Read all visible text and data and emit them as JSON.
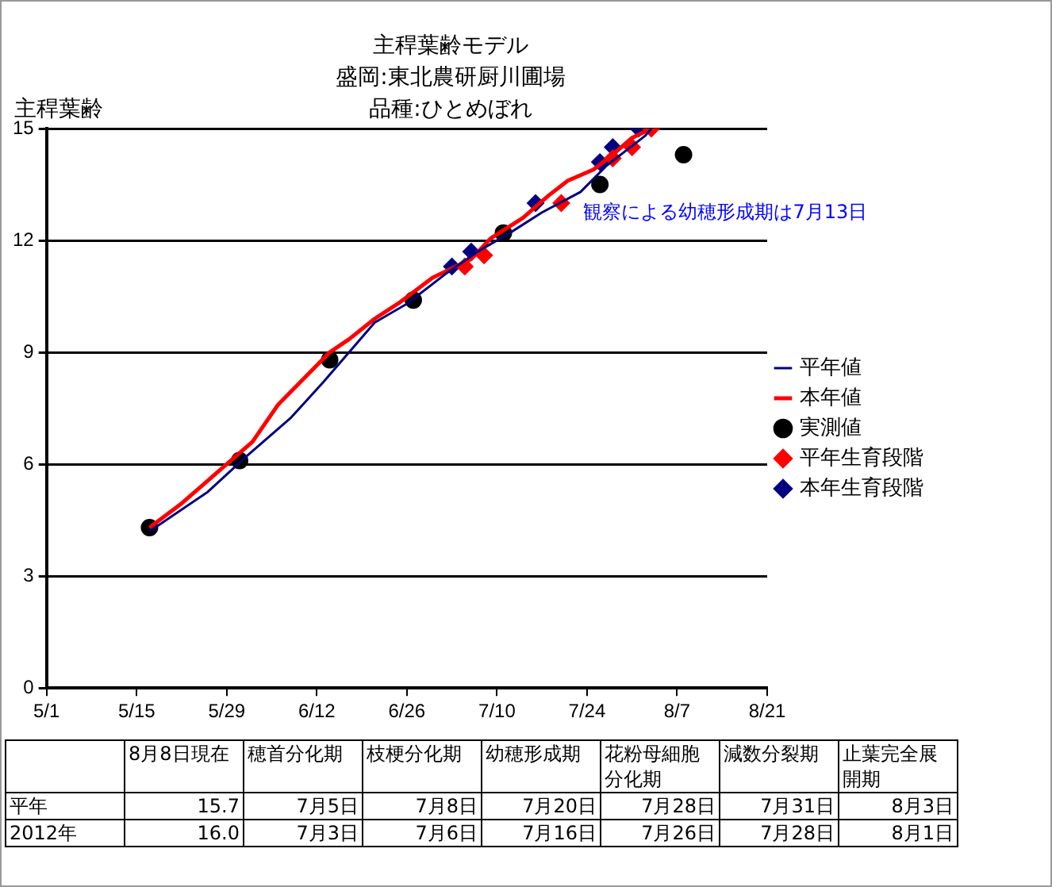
{
  "chart_data": {
    "type": "line",
    "title": "主稈葉齢モデル",
    "subtitle": "盛岡:東北農研厨川圃場",
    "ylabel": "主稈葉齢",
    "xlim": [
      "2012-05-01",
      "2012-08-21"
    ],
    "xticks": [
      {
        "value": "2012-05-01",
        "label": "5/1"
      },
      {
        "value": "2012-05-15",
        "label": "5/15"
      },
      {
        "value": "2012-05-29",
        "label": "5/29"
      },
      {
        "value": "2012-06-12",
        "label": "6/12"
      },
      {
        "value": "2012-06-26",
        "label": "6/26"
      },
      {
        "value": "2012-07-10",
        "label": "7/10"
      },
      {
        "value": "2012-07-24",
        "label": "7/24"
      },
      {
        "value": "2012-08-07",
        "label": "8/7"
      },
      {
        "value": "2012-08-21",
        "label": "8/21"
      }
    ],
    "ylim": [
      0,
      15
    ],
    "yticks": [
      0,
      3,
      6,
      9,
      12,
      15
    ],
    "grid": "y",
    "legend": "right",
    "series": [
      {
        "name": "平年値",
        "marker": "none",
        "color": "#000080",
        "x": [
          "2012-05-17",
          "2012-05-26",
          "2012-06-01",
          "2012-06-08",
          "2012-06-13",
          "2012-06-18",
          "2012-06-21",
          "2012-06-26",
          "2012-07-02",
          "2012-07-07",
          "2012-07-12",
          "2012-07-17",
          "2012-07-23",
          "2012-07-27",
          "2012-08-02",
          "2012-08-03"
        ],
        "values": [
          4.2,
          5.25,
          6.2,
          7.25,
          8.2,
          9.2,
          9.8,
          10.3,
          11.1,
          11.7,
          12.2,
          12.75,
          13.3,
          14.0,
          14.8,
          15.0
        ]
      },
      {
        "name": "本年値",
        "marker": "none",
        "color": "#ff0000",
        "x": [
          "2012-05-17",
          "2012-05-22",
          "2012-05-27",
          "2012-06-02",
          "2012-06-06",
          "2012-06-10",
          "2012-06-14",
          "2012-06-17",
          "2012-06-21",
          "2012-06-25",
          "2012-06-30",
          "2012-07-06",
          "2012-07-09",
          "2012-07-14",
          "2012-07-18",
          "2012-07-21",
          "2012-07-25",
          "2012-07-28",
          "2012-07-31",
          "2012-08-03"
        ],
        "values": [
          4.3,
          4.95,
          5.7,
          6.6,
          7.6,
          8.3,
          9.0,
          9.35,
          9.9,
          10.35,
          11.0,
          11.5,
          12.05,
          12.6,
          13.2,
          13.6,
          13.9,
          14.3,
          14.75,
          15.0
        ]
      },
      {
        "name": "実測値",
        "type": "scatter",
        "marker": "circle",
        "color": "#000000",
        "x": [
          "2012-05-17",
          "2012-05-31",
          "2012-06-14",
          "2012-06-27",
          "2012-07-11",
          "2012-07-26",
          "2012-08-08"
        ],
        "values": [
          4.3,
          6.1,
          8.8,
          10.4,
          12.2,
          13.5,
          14.3
        ]
      },
      {
        "name": "平年生育段階",
        "type": "scatter",
        "marker": "diamond",
        "color": "#ff0000",
        "x": [
          "2012-07-05",
          "2012-07-08",
          "2012-07-20",
          "2012-07-28",
          "2012-07-31",
          "2012-08-03"
        ],
        "values": [
          11.3,
          11.6,
          13.0,
          14.2,
          14.5,
          15.0
        ]
      },
      {
        "name": "本年生育段階",
        "type": "scatter",
        "marker": "diamond",
        "color": "#000080",
        "x": [
          "2012-07-03",
          "2012-07-06",
          "2012-07-16",
          "2012-07-26",
          "2012-07-28",
          "2012-08-01"
        ],
        "values": [
          11.3,
          11.7,
          13.0,
          14.1,
          14.5,
          15.0
        ]
      }
    ],
    "annotations": [
      "観察による幼穂形成期は7月13日",
      "品種:ひとめぼれ",
      "8月8日現在",
      "穂首分化期",
      "枝梗分化期",
      "幼穂形成期",
      "花粉母細胞分化期",
      "減数分裂期",
      "止葉完全展開期",
      "平年",
      "15.7",
      "7月5日",
      "7月8日",
      "7月20日",
      "7月28日",
      "7月31日",
      "8月3日",
      "2012年",
      "16.0",
      "7月3日",
      "7月6日",
      "7月16日",
      "7月26日",
      "7月28日",
      "8月1日"
    ]
  }
}
